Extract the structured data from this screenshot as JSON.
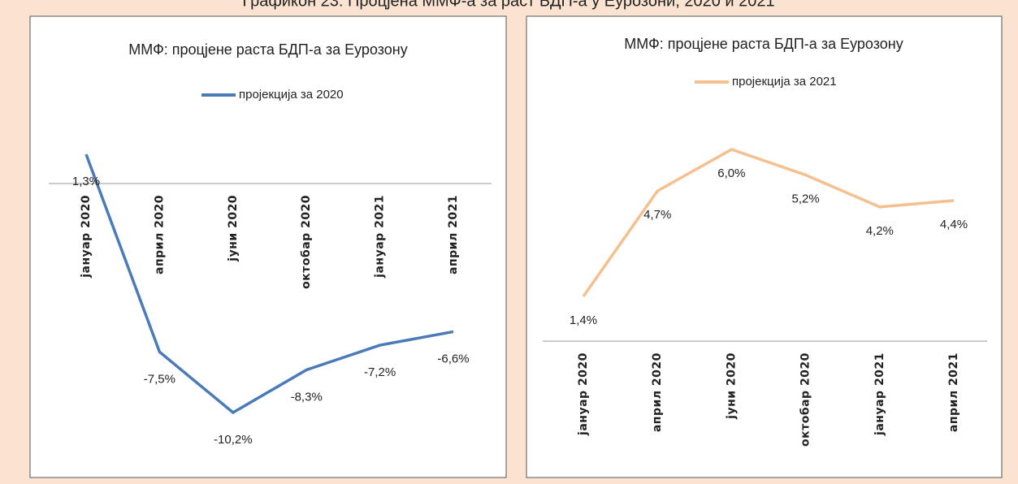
{
  "caption": "Графикон 23: Процјена ММФ-а за раст БДП-а у Еурозони, 2020 и 2021",
  "chart_data": [
    {
      "type": "line",
      "title": "ММФ: процјене раста БДП-а за Еурозону",
      "categories": [
        "јануар 2020",
        "април 2020",
        "јуни 2020",
        "октобар 2020",
        "јануар 2021",
        "април 2021"
      ],
      "series": [
        {
          "name": "пројекција за 2020",
          "color": "#4a7ab8",
          "values": [
            1.3,
            -7.5,
            -10.2,
            -8.3,
            -7.2,
            -6.6
          ],
          "value_labels": [
            "1,3%",
            "-7,5%",
            "-10,2%",
            "-8,3%",
            "-7,2%",
            "-6,6%"
          ]
        }
      ]
    },
    {
      "type": "line",
      "title": "ММФ: процјене раста БДП-а за Еурозону",
      "categories": [
        "јануар 2020",
        "април 2020",
        "јуни 2020",
        "октобар 2020",
        "јануар 2021",
        "април 2021"
      ],
      "series": [
        {
          "name": "пројекција за 2021",
          "color": "#f5bf8e",
          "values": [
            1.4,
            4.7,
            6.0,
            5.2,
            4.2,
            4.4
          ],
          "value_labels": [
            "1,4%",
            "4,7%",
            "6,0%",
            "5,2%",
            "4,2%",
            "4,4%"
          ]
        }
      ]
    }
  ]
}
